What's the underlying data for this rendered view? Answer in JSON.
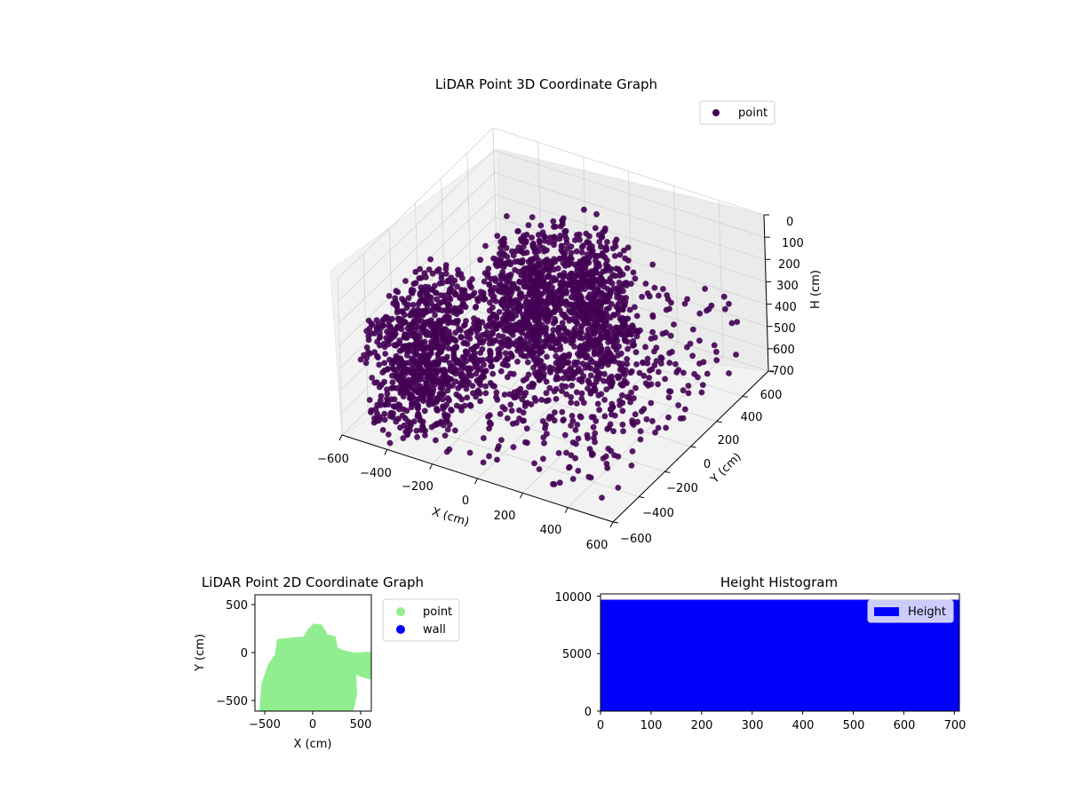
{
  "chart_data": [
    {
      "type": "scatter3d",
      "title": "LiDAR Point 3D Coordinate Graph",
      "xlabel": "X (cm)",
      "ylabel": "Y (cm)",
      "zlabel": "H (cm)",
      "xlim": [
        -600,
        600
      ],
      "ylim": [
        -600,
        600
      ],
      "zlim": [
        700,
        0
      ],
      "x_ticks": [
        "−600",
        "−400",
        "−200",
        "0",
        "200",
        "400",
        "600"
      ],
      "y_ticks": [
        "−600",
        "−400",
        "−200",
        "0",
        "200",
        "400",
        "600"
      ],
      "z_ticks": [
        "0",
        "100",
        "200",
        "300",
        "400",
        "500",
        "600",
        "700"
      ],
      "legend": [
        "point"
      ],
      "legend_position": "top-right",
      "grid": true,
      "colors": {
        "point": "#440154"
      }
    },
    {
      "type": "scatter",
      "title": "LiDAR Point 2D Coordinate Graph",
      "xlabel": "X (cm)",
      "ylabel": "Y (cm)",
      "xlim": [
        -600,
        600
      ],
      "ylim": [
        -600,
        600
      ],
      "x_ticks": [
        "−500",
        "0",
        "500"
      ],
      "y_ticks": [
        "−500",
        "0",
        "500"
      ],
      "legend": [
        "point",
        "wall"
      ],
      "legend_position": "outside-right",
      "colors": {
        "point": "#90ee90",
        "wall": "#0000ff"
      },
      "region_outline": [
        [
          -540,
          -600
        ],
        [
          -520,
          -320
        ],
        [
          -450,
          -120
        ],
        [
          -380,
          -20
        ],
        [
          -360,
          130
        ],
        [
          -180,
          150
        ],
        [
          -90,
          155
        ],
        [
          -50,
          230
        ],
        [
          10,
          290
        ],
        [
          80,
          280
        ],
        [
          140,
          180
        ],
        [
          220,
          160
        ],
        [
          240,
          50
        ],
        [
          290,
          20
        ],
        [
          380,
          0
        ],
        [
          420,
          -10
        ],
        [
          600,
          0
        ],
        [
          600,
          -260
        ],
        [
          510,
          -240
        ],
        [
          430,
          -200
        ],
        [
          440,
          -430
        ],
        [
          400,
          -600
        ]
      ]
    },
    {
      "type": "bar",
      "title": "Height Histogram",
      "xlabel": "",
      "ylabel": "",
      "xlim": [
        0,
        710
      ],
      "ylim": [
        0,
        10200
      ],
      "x_ticks": [
        "0",
        "100",
        "200",
        "300",
        "400",
        "500",
        "600",
        "700"
      ],
      "y_ticks": [
        "0",
        "5000",
        "10000"
      ],
      "legend": [
        "Height"
      ],
      "legend_position": "top-right",
      "bins": [
        [
          0,
          710
        ]
      ],
      "values": [
        9700
      ],
      "colors": {
        "bar": "#0000ff"
      }
    }
  ]
}
